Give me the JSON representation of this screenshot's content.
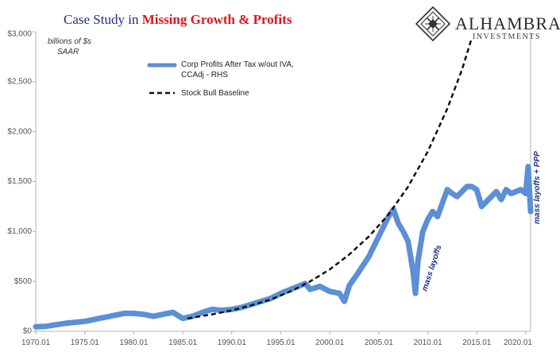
{
  "title": {
    "part1": "Case Study in ",
    "part2": "Missing Growth & Profits"
  },
  "brand": {
    "name": "ALHAMBRA",
    "sub": "INVESTMENTS",
    "logo_icon": "diamond-lattice-logo"
  },
  "colors": {
    "profits": "#5b8fd6",
    "baseline": "#111111",
    "title_blue": "#1f2f86",
    "title_red": "#e3131b",
    "annotation": "#1f2f86"
  },
  "units": {
    "line1": "billions of $s",
    "line2": "SAAR"
  },
  "legend": {
    "profits_line1": "Corp Profits After Tax w/out IVA,",
    "profits_line2": "CCAdj - RHS",
    "baseline": "Stock Bull Baseline",
    "placement": "top-left"
  },
  "annotations": {
    "mass_layoffs": "mass layoffs",
    "mass_layoffs_ppp": "mass layoffs + PPP"
  },
  "chart_data": {
    "type": "line",
    "xlim": [
      1970.0,
      2020.5
    ],
    "ylim": [
      0,
      3000
    ],
    "x_ticks": [
      1970.01,
      1975.01,
      1980.01,
      1985.01,
      1990.01,
      1995.01,
      2000.01,
      2005.01,
      2010.01,
      2015.01,
      2020.01
    ],
    "x_tick_labels": [
      "1970.01",
      "1975.01",
      "1980.01",
      "1985.01",
      "1990.01",
      "1995.01",
      "2000.01",
      "2005.01",
      "2010.01",
      "2015.01",
      "2020.01"
    ],
    "y_ticks": [
      0,
      500,
      1000,
      1500,
      2000,
      2500,
      3000
    ],
    "y_tick_labels": [
      "$0",
      "$500",
      "$1,000",
      "$1,500",
      "$2,000",
      "$2,500",
      "$3,000"
    ],
    "grid": false,
    "series": [
      {
        "name": "Corp Profits After Tax w/out IVA, CCAdj - RHS",
        "style": "solid",
        "x": [
          1970.0,
          1971.0,
          1972.0,
          1973.0,
          1974.0,
          1975.0,
          1976.0,
          1977.0,
          1978.0,
          1979.0,
          1980.0,
          1981.0,
          1982.0,
          1983.0,
          1984.0,
          1985.0,
          1986.0,
          1987.0,
          1988.0,
          1989.0,
          1990.0,
          1991.0,
          1992.0,
          1993.0,
          1994.0,
          1995.0,
          1996.0,
          1997.0,
          1997.5,
          1998.0,
          1999.0,
          2000.0,
          2001.0,
          2001.5,
          2002.0,
          2003.0,
          2004.0,
          2005.0,
          2006.0,
          2006.5,
          2007.0,
          2007.5,
          2008.0,
          2008.5,
          2008.75,
          2009.0,
          2009.5,
          2010.0,
          2010.5,
          2011.0,
          2012.0,
          2012.5,
          2013.0,
          2014.0,
          2014.5,
          2015.0,
          2015.5,
          2016.0,
          2017.0,
          2017.5,
          2018.0,
          2018.5,
          2019.0,
          2019.5,
          2020.0,
          2020.25,
          2020.5
        ],
        "values": [
          45,
          50,
          65,
          80,
          90,
          100,
          120,
          140,
          160,
          180,
          180,
          170,
          150,
          170,
          190,
          130,
          150,
          190,
          220,
          210,
          220,
          240,
          270,
          300,
          330,
          380,
          420,
          460,
          480,
          420,
          450,
          400,
          380,
          300,
          460,
          600,
          750,
          950,
          1150,
          1220,
          1080,
          1000,
          900,
          600,
          380,
          700,
          1000,
          1120,
          1200,
          1150,
          1420,
          1380,
          1350,
          1450,
          1450,
          1420,
          1250,
          1300,
          1400,
          1320,
          1420,
          1380,
          1400,
          1420,
          1380,
          1650,
          1200
        ]
      },
      {
        "name": "Stock Bull Baseline",
        "style": "dashed",
        "x": [
          1985.5,
          1988.0,
          1990.0,
          1992.0,
          1994.0,
          1996.0,
          1998.0,
          2000.0,
          2002.0,
          2004.0,
          2006.0,
          2008.0,
          2010.0,
          2012.0,
          2013.5,
          2014.5
        ],
        "values": [
          130,
          170,
          210,
          260,
          320,
          400,
          500,
          620,
          770,
          950,
          1170,
          1450,
          1800,
          2230,
          2620,
          2940
        ]
      }
    ]
  }
}
